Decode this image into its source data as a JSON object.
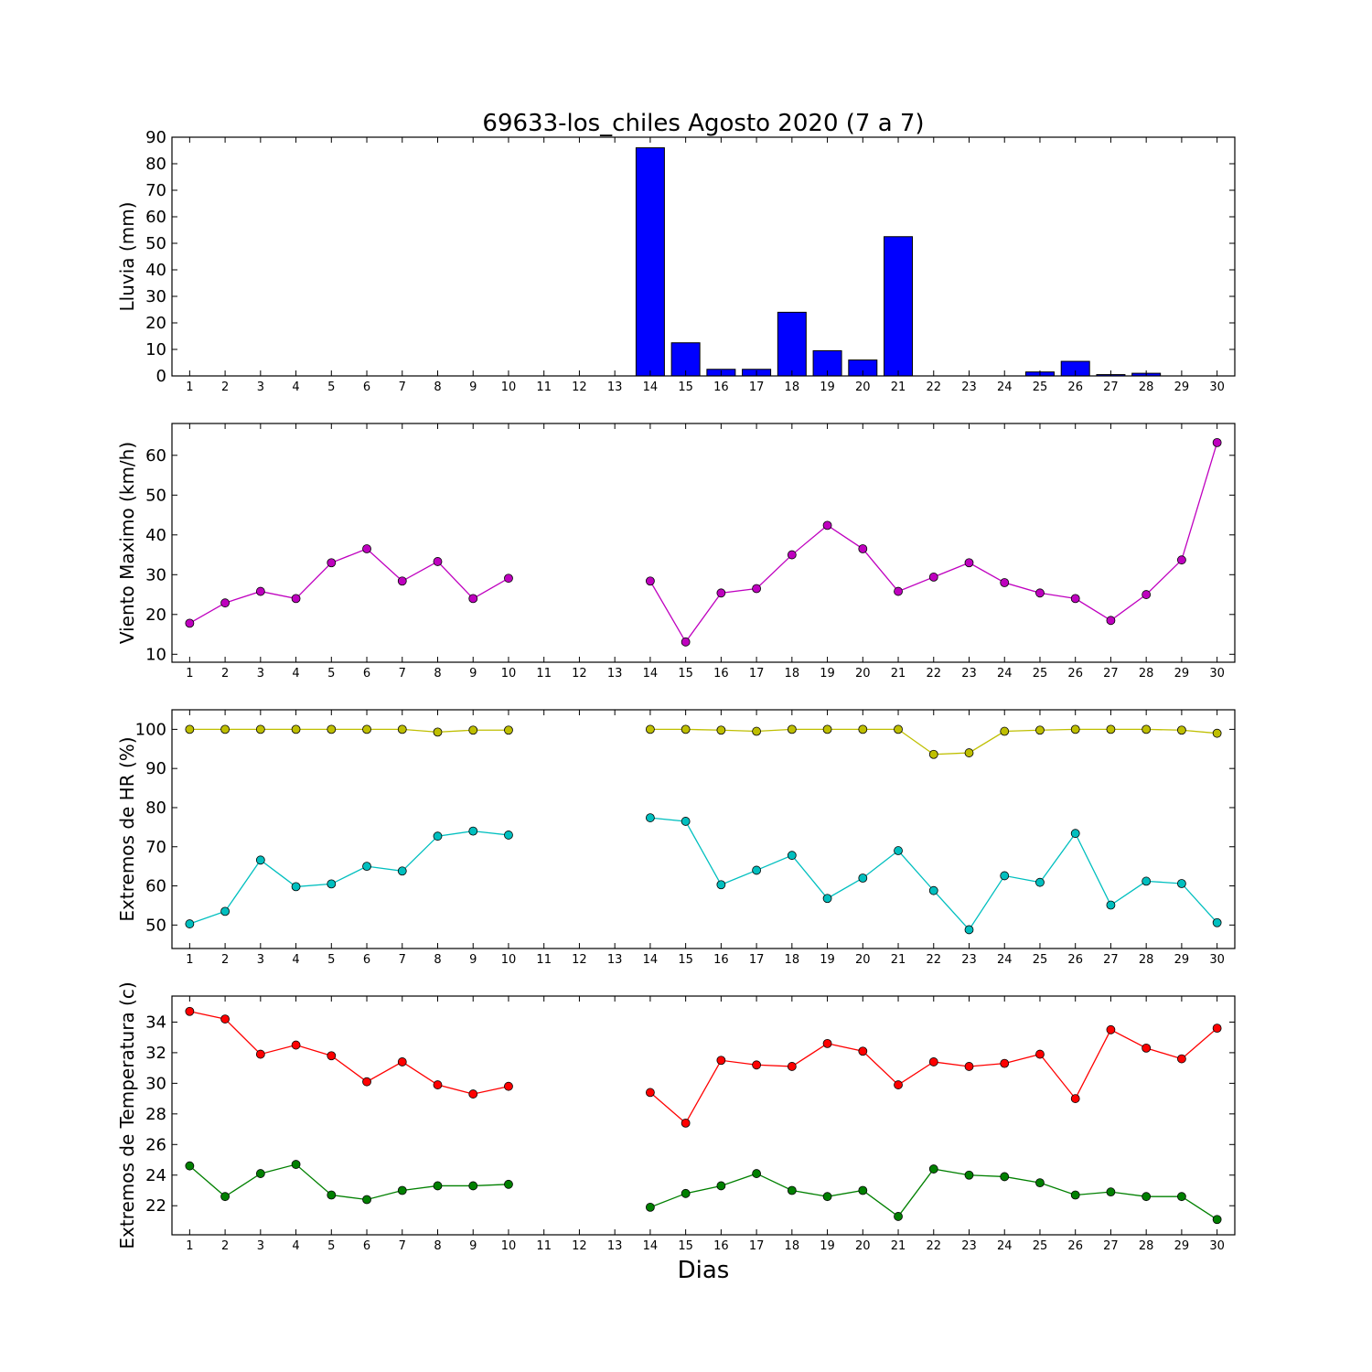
{
  "chart_data": {
    "title": "69633-los_chiles Agosto 2020  (7 a 7)",
    "xlabel": "Dias",
    "days": [
      1,
      2,
      3,
      4,
      5,
      6,
      7,
      8,
      9,
      10,
      11,
      12,
      13,
      14,
      15,
      16,
      17,
      18,
      19,
      20,
      21,
      22,
      23,
      24,
      25,
      26,
      27,
      28,
      29,
      30
    ],
    "xlim": [
      0.5,
      30.5
    ],
    "panels": [
      {
        "type": "bar",
        "ylabel": "Lluvia (mm)",
        "ylim": [
          0,
          90
        ],
        "yticks": [
          0,
          10,
          20,
          30,
          40,
          50,
          60,
          70,
          80,
          90
        ],
        "series": [
          {
            "color": "#0000ff",
            "values": [
              0,
              0,
              0,
              0,
              0,
              0,
              0,
              0,
              0,
              0,
              0,
              0,
              0,
              86,
              12.5,
              2.5,
              2.5,
              24,
              9.5,
              6,
              52.5,
              0,
              0,
              0,
              1.5,
              5.5,
              0.5,
              1,
              0,
              0
            ]
          }
        ]
      },
      {
        "type": "line",
        "ylabel": "Viento Maximo (km/h)",
        "ylim": [
          8,
          68
        ],
        "yticks": [
          10,
          20,
          30,
          40,
          50,
          60
        ],
        "series": [
          {
            "color": "#bf00bf",
            "values": [
              17.8,
              22.9,
              25.8,
              24,
              33,
              36.5,
              28.4,
              33.3,
              24,
              29.1,
              null,
              null,
              null,
              28.4,
              13.1,
              25.4,
              26.5,
              35,
              42.4,
              36.5,
              25.8,
              29.4,
              33,
              28,
              25.4,
              24,
              18.5,
              25,
              33.7,
              63.2
            ]
          }
        ]
      },
      {
        "type": "line",
        "ylabel": "Extremos de HR (%)",
        "ylim": [
          44,
          105
        ],
        "yticks": [
          50,
          60,
          70,
          80,
          90,
          100
        ],
        "series": [
          {
            "color": "#bfbf00",
            "values": [
              100,
              100,
              100,
              100,
              100,
              100,
              100,
              99.3,
              99.8,
              99.8,
              null,
              null,
              null,
              100,
              100,
              99.8,
              99.5,
              100,
              100,
              100,
              100,
              93.6,
              94,
              99.5,
              99.8,
              100,
              100,
              100,
              99.8,
              99
            ]
          },
          {
            "color": "#00bfbf",
            "values": [
              50.3,
              53.5,
              66.6,
              59.8,
              60.5,
              65,
              63.8,
              72.7,
              74,
              73,
              null,
              null,
              null,
              77.4,
              76.5,
              60.3,
              64,
              67.8,
              56.8,
              62,
              69,
              58.8,
              48.8,
              62.6,
              60.9,
              73.4,
              55.1,
              61.2,
              60.6,
              50.6
            ]
          }
        ]
      },
      {
        "type": "line",
        "ylabel": "Extremos de Temperatura (c)",
        "ylim": [
          20.1,
          35.7
        ],
        "yticks": [
          22,
          24,
          26,
          28,
          30,
          32,
          34
        ],
        "series": [
          {
            "color": "#ff0000",
            "values": [
              34.7,
              34.2,
              31.9,
              32.5,
              31.8,
              30.1,
              31.4,
              29.9,
              29.3,
              29.8,
              null,
              null,
              null,
              29.4,
              27.4,
              31.5,
              31.2,
              31.1,
              32.6,
              32.1,
              29.9,
              31.4,
              31.1,
              31.3,
              31.9,
              29,
              33.5,
              32.3,
              31.6,
              33.6
            ]
          },
          {
            "color": "#008000",
            "values": [
              24.6,
              22.6,
              24.1,
              24.7,
              22.7,
              22.4,
              23,
              23.3,
              23.3,
              23.4,
              null,
              null,
              null,
              21.9,
              22.8,
              23.3,
              24.1,
              23,
              22.6,
              23,
              21.3,
              24.4,
              24,
              23.9,
              23.5,
              22.7,
              22.9,
              22.6,
              22.6,
              21.1
            ]
          }
        ]
      }
    ]
  }
}
